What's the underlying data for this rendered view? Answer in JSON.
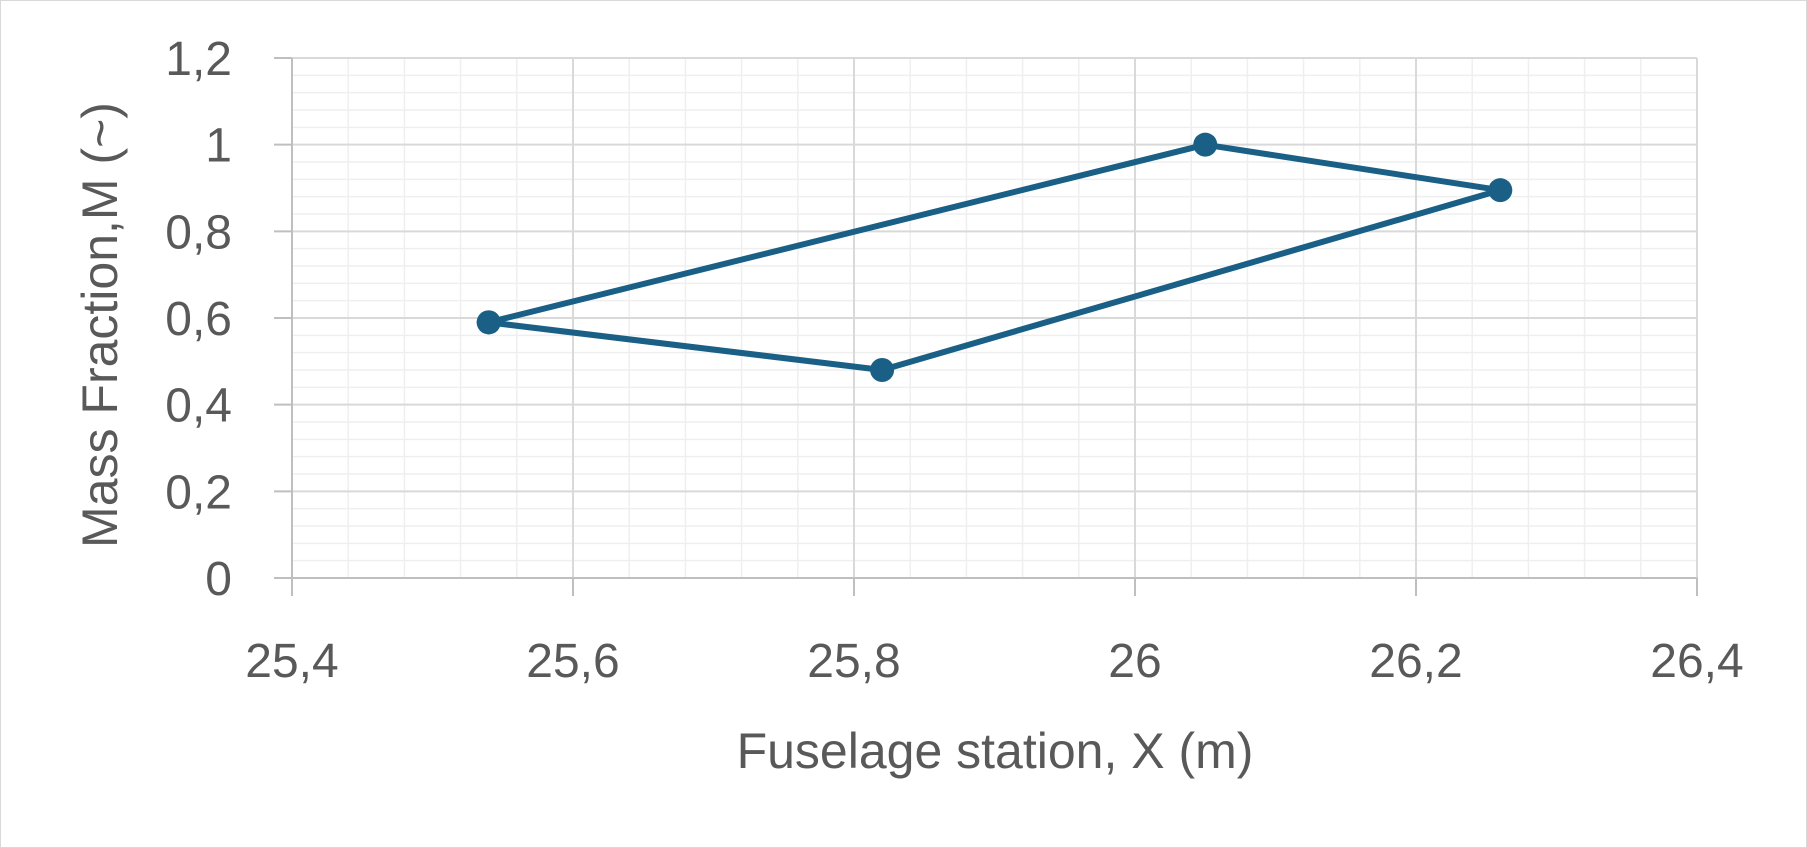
{
  "chart_data": {
    "type": "scatter",
    "title": "",
    "xlabel": "Fuselage station, X (m)",
    "ylabel": "Mass Fraction,M (~)",
    "xlim": [
      25.4,
      26.4
    ],
    "ylim": [
      0,
      1.2
    ],
    "x_ticks": [
      "25,4",
      "25,6",
      "25,8",
      "26",
      "26,2",
      "26,4"
    ],
    "y_ticks": [
      "0",
      "0,2",
      "0,4",
      "0,6",
      "0,8",
      "1",
      "1,2"
    ],
    "x_tick_values": [
      25.4,
      25.6,
      25.8,
      26.0,
      26.2,
      26.4
    ],
    "y_tick_values": [
      0,
      0.2,
      0.4,
      0.6,
      0.8,
      1.0,
      1.2
    ],
    "grid": {
      "major": true,
      "minor": true
    },
    "legend": "none",
    "series": [
      {
        "color": "#1a5f85",
        "markers": true,
        "closed": true,
        "points": [
          {
            "x": 25.54,
            "y": 0.59
          },
          {
            "x": 26.05,
            "y": 1.0
          },
          {
            "x": 26.26,
            "y": 0.895
          },
          {
            "x": 25.82,
            "y": 0.48
          },
          {
            "x": 25.54,
            "y": 0.59
          }
        ]
      }
    ],
    "colors": {
      "series": "#1a5f85",
      "major_grid": "#d9d9d9",
      "minor_grid": "#efefef",
      "text": "#595959"
    }
  }
}
